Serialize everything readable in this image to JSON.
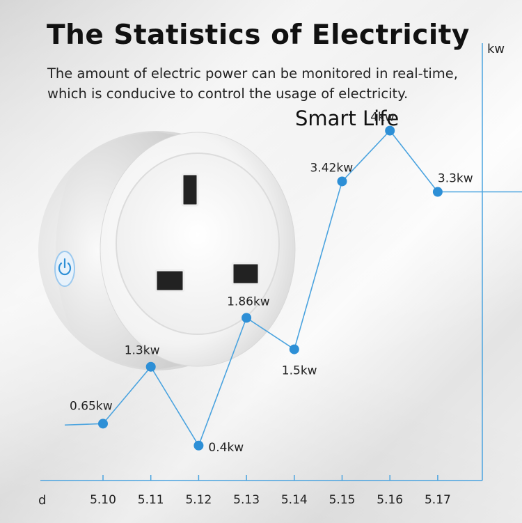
{
  "header": {
    "title": "The Statistics of Electricity",
    "subtitle": "The amount of electric power can be monitored in real-time, which is conducive to control the usage of electricity.",
    "app_name": "Smart Life"
  },
  "product": {
    "name": "smart plug",
    "button_icon": "power-icon",
    "accent_color": "#2d8fd6"
  },
  "chart_data": {
    "type": "line",
    "xlabel": "d",
    "ylabel": "kw",
    "categories": [
      "5.10",
      "5.11",
      "5.12",
      "5.13",
      "5.14",
      "5.15",
      "5.16",
      "5.17"
    ],
    "values": [
      0.65,
      1.3,
      0.4,
      1.86,
      1.5,
      3.42,
      4,
      3.3
    ],
    "data_labels": [
      "0.65kw",
      "1.3kw",
      "0.4kw",
      "1.86kw",
      "1.5kw",
      "3.42kw",
      "4kw",
      "3.3kw"
    ],
    "ylim": [
      0,
      5
    ],
    "grid": false,
    "line_color": "#4aa3df",
    "marker_color": "#2d8fd6"
  }
}
